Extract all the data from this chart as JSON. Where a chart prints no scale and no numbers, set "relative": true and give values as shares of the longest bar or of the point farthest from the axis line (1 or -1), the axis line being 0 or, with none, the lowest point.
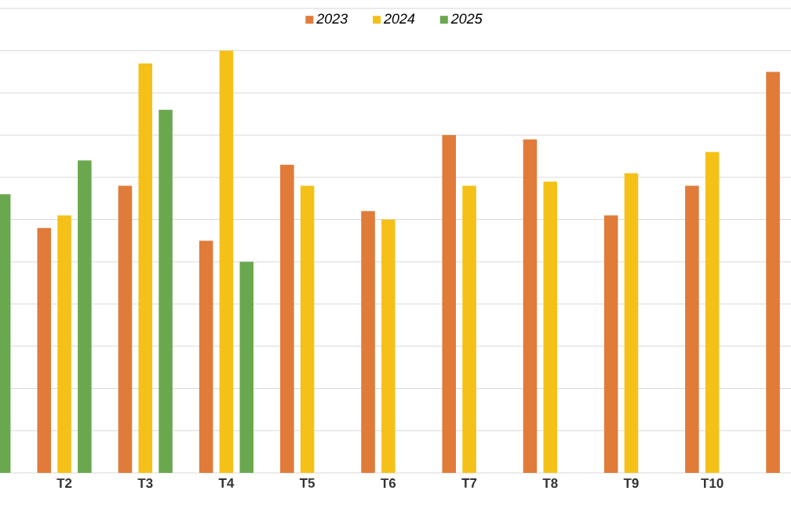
{
  "chart_data": {
    "type": "bar",
    "relative": true,
    "grid": "y",
    "legend": "top",
    "categories": [
      null,
      "T2",
      "T3",
      "T4",
      "T5",
      "T6",
      "T7",
      "T8",
      "T9",
      "T10",
      null
    ],
    "series": [
      {
        "name": "2023",
        "color": "#e07b39",
        "values": [
          null,
          0.58,
          0.68,
          0.55,
          0.73,
          0.62,
          0.8,
          0.79,
          0.61,
          0.68,
          0.95
        ]
      },
      {
        "name": "2024",
        "color": "#f5c118",
        "values": [
          null,
          0.61,
          0.97,
          1,
          0.68,
          0.6,
          0.68,
          0.69,
          0.71,
          0.76,
          null
        ]
      },
      {
        "name": "2025",
        "color": "#6aa84f",
        "values": [
          0.66,
          0.74,
          0.86,
          0.5,
          null,
          null,
          null,
          null,
          null,
          null,
          null
        ]
      }
    ]
  }
}
